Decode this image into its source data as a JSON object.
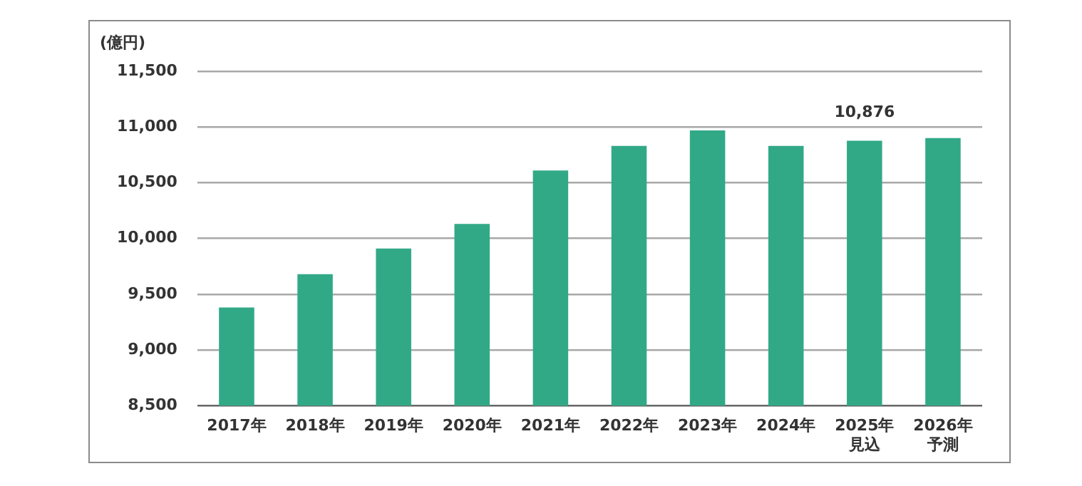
{
  "chart_data": {
    "type": "bar",
    "ylabel": "(億円)",
    "categories": [
      "2017年",
      "2018年",
      "2019年",
      "2020年",
      "2021年",
      "2022年",
      "2023年",
      "2024年",
      "2025年見込",
      "2026年予測"
    ],
    "values": [
      9380,
      9680,
      9910,
      10130,
      10610,
      10830,
      10970,
      10830,
      10876,
      10900
    ],
    "value_labels": [
      null,
      null,
      null,
      null,
      null,
      null,
      null,
      null,
      "10,876",
      null
    ],
    "color": "#31a987",
    "ylim": [
      8500,
      11500
    ],
    "yticks": [
      {
        "value": 8500,
        "label": "8,500"
      },
      {
        "value": 9000,
        "label": "9,000"
      },
      {
        "value": 9500,
        "label": "9,500"
      },
      {
        "value": 10000,
        "label": "10,000"
      },
      {
        "value": 10500,
        "label": "10,500"
      },
      {
        "value": 11000,
        "label": "11,000"
      },
      {
        "value": 11500,
        "label": "11,500"
      }
    ],
    "grid": "y",
    "legend": false
  }
}
